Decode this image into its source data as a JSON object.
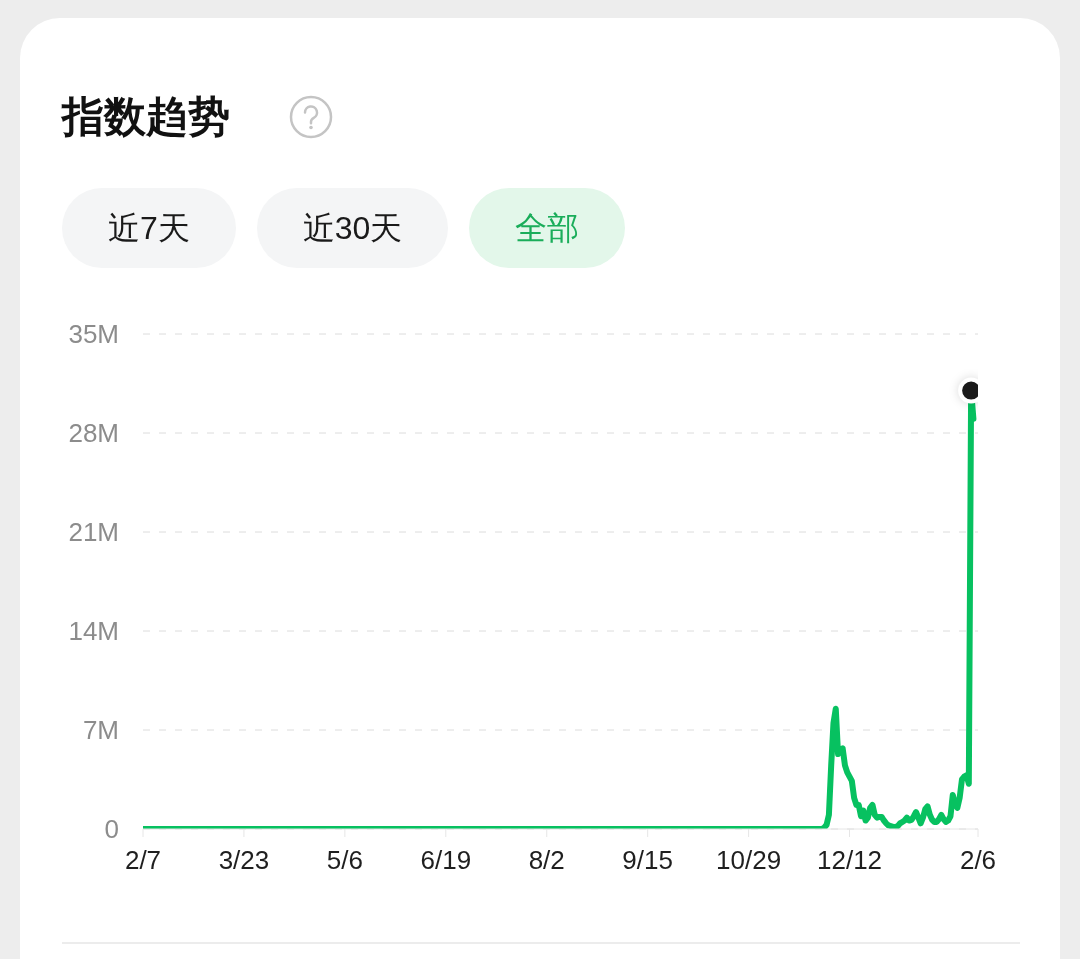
{
  "chart_data": {
    "type": "line",
    "title": "指数趋势",
    "annotations": [
      "近7天",
      "近30天",
      "全部"
    ],
    "categories": [
      "2/7",
      null,
      null,
      null,
      null,
      null,
      null,
      null,
      null,
      null,
      null,
      null,
      null,
      null,
      null,
      null,
      null,
      null,
      null,
      null,
      null,
      null,
      null,
      null,
      null,
      null,
      null,
      null,
      null,
      null,
      null,
      null,
      null,
      null,
      null,
      null,
      null,
      null,
      null,
      null,
      null,
      null,
      null,
      null,
      "3/23",
      null,
      null,
      null,
      null,
      null,
      null,
      null,
      null,
      null,
      null,
      null,
      null,
      null,
      null,
      null,
      null,
      null,
      null,
      null,
      null,
      null,
      null,
      null,
      null,
      null,
      null,
      null,
      null,
      null,
      null,
      null,
      null,
      null,
      null,
      null,
      null,
      null,
      null,
      null,
      null,
      null,
      null,
      null,
      "5/6",
      null,
      null,
      null,
      null,
      null,
      null,
      null,
      null,
      null,
      null,
      null,
      null,
      null,
      null,
      null,
      null,
      null,
      null,
      null,
      null,
      null,
      null,
      null,
      null,
      null,
      null,
      null,
      null,
      null,
      null,
      null,
      null,
      null,
      null,
      null,
      null,
      null,
      null,
      null,
      null,
      null,
      null,
      null,
      "6/19",
      null,
      null,
      null,
      null,
      null,
      null,
      null,
      null,
      null,
      null,
      null,
      null,
      null,
      null,
      null,
      null,
      null,
      null,
      null,
      null,
      null,
      null,
      null,
      null,
      null,
      null,
      null,
      null,
      null,
      null,
      null,
      null,
      null,
      null,
      null,
      null,
      null,
      null,
      null,
      null,
      null,
      null,
      null,
      "8/2",
      null,
      null,
      null,
      null,
      null,
      null,
      null,
      null,
      null,
      null,
      null,
      null,
      null,
      null,
      null,
      null,
      null,
      null,
      null,
      null,
      null,
      null,
      null,
      null,
      null,
      null,
      null,
      null,
      null,
      null,
      null,
      null,
      null,
      null,
      null,
      null,
      null,
      null,
      null,
      null,
      null,
      null,
      null,
      "9/15",
      null,
      null,
      null,
      null,
      null,
      null,
      null,
      null,
      null,
      null,
      null,
      null,
      null,
      null,
      null,
      null,
      null,
      null,
      null,
      null,
      null,
      null,
      null,
      null,
      null,
      null,
      null,
      null,
      null,
      null,
      null,
      null,
      null,
      null,
      null,
      null,
      null,
      null,
      null,
      null,
      null,
      null,
      null,
      "10/29",
      null,
      null,
      null,
      null,
      null,
      null,
      null,
      null,
      null,
      null,
      null,
      null,
      null,
      null,
      null,
      null,
      null,
      null,
      null,
      null,
      null,
      null,
      null,
      null,
      null,
      null,
      null,
      null,
      null,
      null,
      null,
      null,
      null,
      null,
      null,
      null,
      null,
      null,
      null,
      null,
      null,
      null,
      null,
      "12/12",
      null,
      null,
      null,
      null,
      null,
      null,
      null,
      null,
      null,
      null,
      null,
      null,
      null,
      null,
      null,
      null,
      null,
      null,
      null,
      null,
      null,
      null,
      null,
      null,
      null,
      null,
      null,
      null,
      null,
      null,
      null,
      null,
      null,
      null,
      null,
      null,
      null,
      null,
      null,
      null,
      null,
      null,
      null,
      null,
      null,
      null,
      null,
      null,
      null,
      null,
      null,
      null,
      null,
      null,
      null,
      "2/6"
    ],
    "ylim": [
      0,
      35000000
    ],
    "yticks": [
      0,
      {
        "value": 7000000,
        "label": "7M"
      },
      {
        "value": 14000000,
        "label": "14M"
      },
      {
        "value": 21000000,
        "label": "21M"
      },
      {
        "value": 28000000,
        "label": "28M"
      },
      {
        "value": 35000000,
        "label": "35M"
      }
    ],
    "grid": "y",
    "series": [
      {
        "color": "#07c160",
        "values": [
          0,
          0,
          0,
          0,
          0,
          0,
          0,
          0,
          0,
          0,
          0,
          0,
          0,
          0,
          0,
          0,
          0,
          0,
          0,
          0,
          0,
          0,
          0,
          0,
          0,
          0,
          0,
          0,
          0,
          0,
          0,
          0,
          0,
          0,
          0,
          0,
          0,
          0,
          0,
          0,
          0,
          0,
          0,
          0,
          0,
          0,
          0,
          0,
          0,
          0,
          0,
          0,
          0,
          0,
          0,
          0,
          0,
          0,
          0,
          0,
          0,
          0,
          0,
          0,
          0,
          0,
          0,
          0,
          0,
          0,
          0,
          0,
          0,
          0,
          0,
          0,
          0,
          0,
          0,
          0,
          0,
          0,
          0,
          0,
          0,
          0,
          0,
          0,
          0,
          0,
          0,
          0,
          0,
          0,
          0,
          0,
          0,
          0,
          0,
          0,
          0,
          0,
          0,
          0,
          0,
          0,
          0,
          0,
          0,
          0,
          0,
          0,
          0,
          0,
          0,
          0,
          0,
          0,
          0,
          0,
          0,
          0,
          0,
          0,
          0,
          0,
          0,
          0,
          0,
          0,
          0,
          0,
          0,
          0,
          0,
          0,
          0,
          0,
          0,
          0,
          0,
          0,
          0,
          0,
          0,
          0,
          0,
          0,
          0,
          0,
          0,
          0,
          0,
          0,
          0,
          0,
          0,
          0,
          0,
          0,
          0,
          0,
          0,
          0,
          0,
          0,
          0,
          0,
          0,
          0,
          0,
          0,
          0,
          0,
          0,
          0,
          0,
          0,
          0,
          0,
          0,
          0,
          0,
          0,
          0,
          0,
          0,
          0,
          0,
          0,
          0,
          0,
          0,
          0,
          0,
          0,
          0,
          0,
          0,
          0,
          0,
          0,
          0,
          0,
          0,
          0,
          0,
          0,
          0,
          0,
          0,
          0,
          0,
          0,
          0,
          0,
          0,
          0,
          0,
          0,
          0,
          0,
          0,
          0,
          0,
          0,
          0,
          0,
          0,
          0,
          0,
          0,
          0,
          0,
          0,
          0,
          0,
          0,
          0,
          0,
          0,
          0,
          0,
          0,
          0,
          0,
          0,
          0,
          0,
          0,
          0,
          0,
          0,
          0,
          0,
          0,
          0,
          0,
          0,
          0,
          0,
          0,
          0,
          0,
          0,
          0,
          0,
          0,
          0,
          0,
          0,
          0,
          0,
          0,
          0,
          0,
          0,
          0,
          0,
          0,
          0,
          0,
          0,
          0,
          0,
          0,
          0,
          0,
          0,
          0,
          0,
          0,
          0,
          0,
          0,
          0,
          0,
          100000,
          300000,
          1000000,
          4500000,
          7500000,
          8500000,
          5300000,
          5600000,
          5700000,
          4500000,
          4000000,
          3700000,
          3400000,
          2200000,
          1700000,
          1700000,
          900000,
          1300000,
          600000,
          800000,
          1500000,
          1700000,
          1000000,
          800000,
          850000,
          850000,
          600000,
          400000,
          250000,
          200000,
          150000,
          150000,
          200000,
          400000,
          500000,
          600000,
          800000,
          600000,
          650000,
          900000,
          1200000,
          800000,
          400000,
          800000,
          1400000,
          1600000,
          1000000,
          650000,
          500000,
          500000,
          700000,
          1000000,
          700000,
          500000,
          600000,
          900000,
          2400000,
          1800000,
          1500000,
          2200000,
          3500000,
          3700000,
          3800000,
          3200000,
          31000000,
          29000000,
          null,
          null
        ]
      },
      {
        "type": "scatter",
        "color": "#1a1a1a",
        "marker": "circle",
        "values": [
          null,
          null,
          null,
          null,
          null,
          null,
          null,
          null,
          null,
          null,
          null,
          null,
          null,
          null,
          null,
          null,
          null,
          null,
          null,
          null,
          null,
          null,
          null,
          null,
          null,
          null,
          null,
          null,
          null,
          null,
          null,
          null,
          null,
          null,
          null,
          null,
          null,
          null,
          null,
          null,
          null,
          null,
          null,
          null,
          null,
          null,
          null,
          null,
          null,
          null,
          null,
          null,
          null,
          null,
          null,
          null,
          null,
          null,
          null,
          null,
          null,
          null,
          null,
          null,
          null,
          null,
          null,
          null,
          null,
          null,
          null,
          null,
          null,
          null,
          null,
          null,
          null,
          null,
          null,
          null,
          null,
          null,
          null,
          null,
          null,
          null,
          null,
          null,
          null,
          null,
          null,
          null,
          null,
          null,
          null,
          null,
          null,
          null,
          null,
          null,
          null,
          null,
          null,
          null,
          null,
          null,
          null,
          null,
          null,
          null,
          null,
          null,
          null,
          null,
          null,
          null,
          null,
          null,
          null,
          null,
          null,
          null,
          null,
          null,
          null,
          null,
          null,
          null,
          null,
          null,
          null,
          null,
          null,
          null,
          null,
          null,
          null,
          null,
          null,
          null,
          null,
          null,
          null,
          null,
          null,
          null,
          null,
          null,
          null,
          null,
          null,
          null,
          null,
          null,
          null,
          null,
          null,
          null,
          null,
          null,
          null,
          null,
          null,
          null,
          null,
          null,
          null,
          null,
          null,
          null,
          null,
          null,
          null,
          null,
          null,
          null,
          null,
          null,
          null,
          null,
          null,
          null,
          null,
          null,
          null,
          null,
          null,
          null,
          null,
          null,
          null,
          null,
          null,
          null,
          null,
          null,
          null,
          null,
          null,
          null,
          null,
          null,
          null,
          null,
          null,
          null,
          null,
          null,
          null,
          null,
          null,
          null,
          null,
          null,
          null,
          null,
          null,
          null,
          null,
          null,
          null,
          null,
          null,
          null,
          null,
          null,
          null,
          null,
          null,
          null,
          null,
          null,
          null,
          null,
          null,
          null,
          null,
          null,
          null,
          null,
          null,
          null,
          null,
          null,
          null,
          null,
          null,
          null,
          null,
          null,
          null,
          null,
          null,
          null,
          null,
          null,
          null,
          null,
          null,
          null,
          null,
          null,
          null,
          null,
          null,
          null,
          null,
          null,
          null,
          null,
          null,
          null,
          null,
          null,
          null,
          null,
          null,
          null,
          null,
          null,
          null,
          null,
          null,
          null,
          null,
          null,
          null,
          null,
          null,
          null,
          null,
          null,
          null,
          null,
          null,
          null,
          null,
          null,
          null,
          null,
          null,
          null,
          null,
          null,
          null,
          null,
          null,
          null,
          null,
          null,
          null,
          null,
          null,
          null,
          null,
          null,
          null,
          null,
          null,
          null,
          null,
          null,
          null,
          null,
          null,
          null,
          null,
          null,
          null,
          null,
          null,
          null,
          null,
          null,
          null,
          null,
          null,
          null,
          null,
          null,
          null,
          null,
          null,
          null,
          null,
          null,
          null,
          null,
          null,
          null,
          null,
          null,
          null,
          null,
          null,
          null,
          null,
          null,
          null,
          null,
          null,
          31000000,
          null,
          null,
          null
        ]
      }
    ]
  }
}
